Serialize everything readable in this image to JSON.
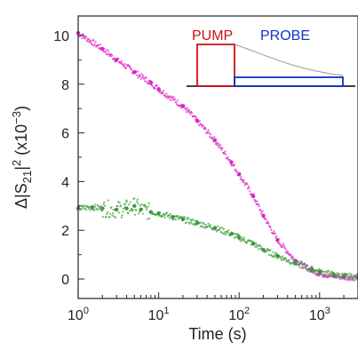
{
  "chart_data": {
    "type": "scatter",
    "xscale": "log",
    "xlabel": "Time (s)",
    "ylabel_parts": {
      "prefix": "Δ|S",
      "sub": "21",
      "mid": "|",
      "sup": "2",
      "open": " (x10",
      "unit_sup": "−3",
      "close": ")"
    },
    "xlim": [
      1,
      3000
    ],
    "ylim": [
      -0.8,
      10.8
    ],
    "x_tick_labels": [
      {
        "x": 1,
        "base": "10",
        "exp": "0"
      },
      {
        "x": 10,
        "base": "10",
        "exp": "1"
      },
      {
        "x": 100,
        "base": "10",
        "exp": "2"
      },
      {
        "x": 1000,
        "base": "10",
        "exp": "3"
      }
    ],
    "y_ticks": [
      0,
      2,
      4,
      6,
      8,
      10
    ],
    "y_tick_labels": [
      "0",
      "2",
      "4",
      "6",
      "8",
      "10"
    ],
    "grid": false,
    "series": [
      {
        "color": "#e020c8",
        "x": [
          1,
          2,
          3,
          5,
          8,
          10,
          20,
          30,
          50,
          80,
          100,
          150,
          200,
          300,
          500,
          800,
          1000,
          1500,
          2000,
          3000
        ],
        "y": [
          10.1,
          9.45,
          9.0,
          8.5,
          8.05,
          7.8,
          7.1,
          6.5,
          5.7,
          4.8,
          4.3,
          3.4,
          2.6,
          1.6,
          0.75,
          0.35,
          0.22,
          0.12,
          0.08,
          0.05
        ]
      },
      {
        "color": "#3a9a3a",
        "x": [
          1,
          1.5,
          2,
          3,
          4,
          5,
          6,
          8,
          10,
          15,
          20,
          30,
          50,
          80,
          100,
          150,
          200,
          300,
          500,
          800,
          1000,
          1500,
          2000,
          3000
        ],
        "y": [
          2.9,
          2.95,
          2.9,
          2.85,
          2.9,
          3.0,
          2.85,
          2.75,
          2.7,
          2.55,
          2.45,
          2.3,
          2.1,
          1.85,
          1.7,
          1.45,
          1.2,
          0.95,
          0.65,
          0.4,
          0.3,
          0.18,
          0.12,
          0.08
        ]
      }
    ],
    "inset": {
      "pump_label": "PUMP",
      "probe_label": "PROBE",
      "pump_color": "#cc1111",
      "probe_color": "#1133cc",
      "decay_color": "#999999"
    }
  }
}
